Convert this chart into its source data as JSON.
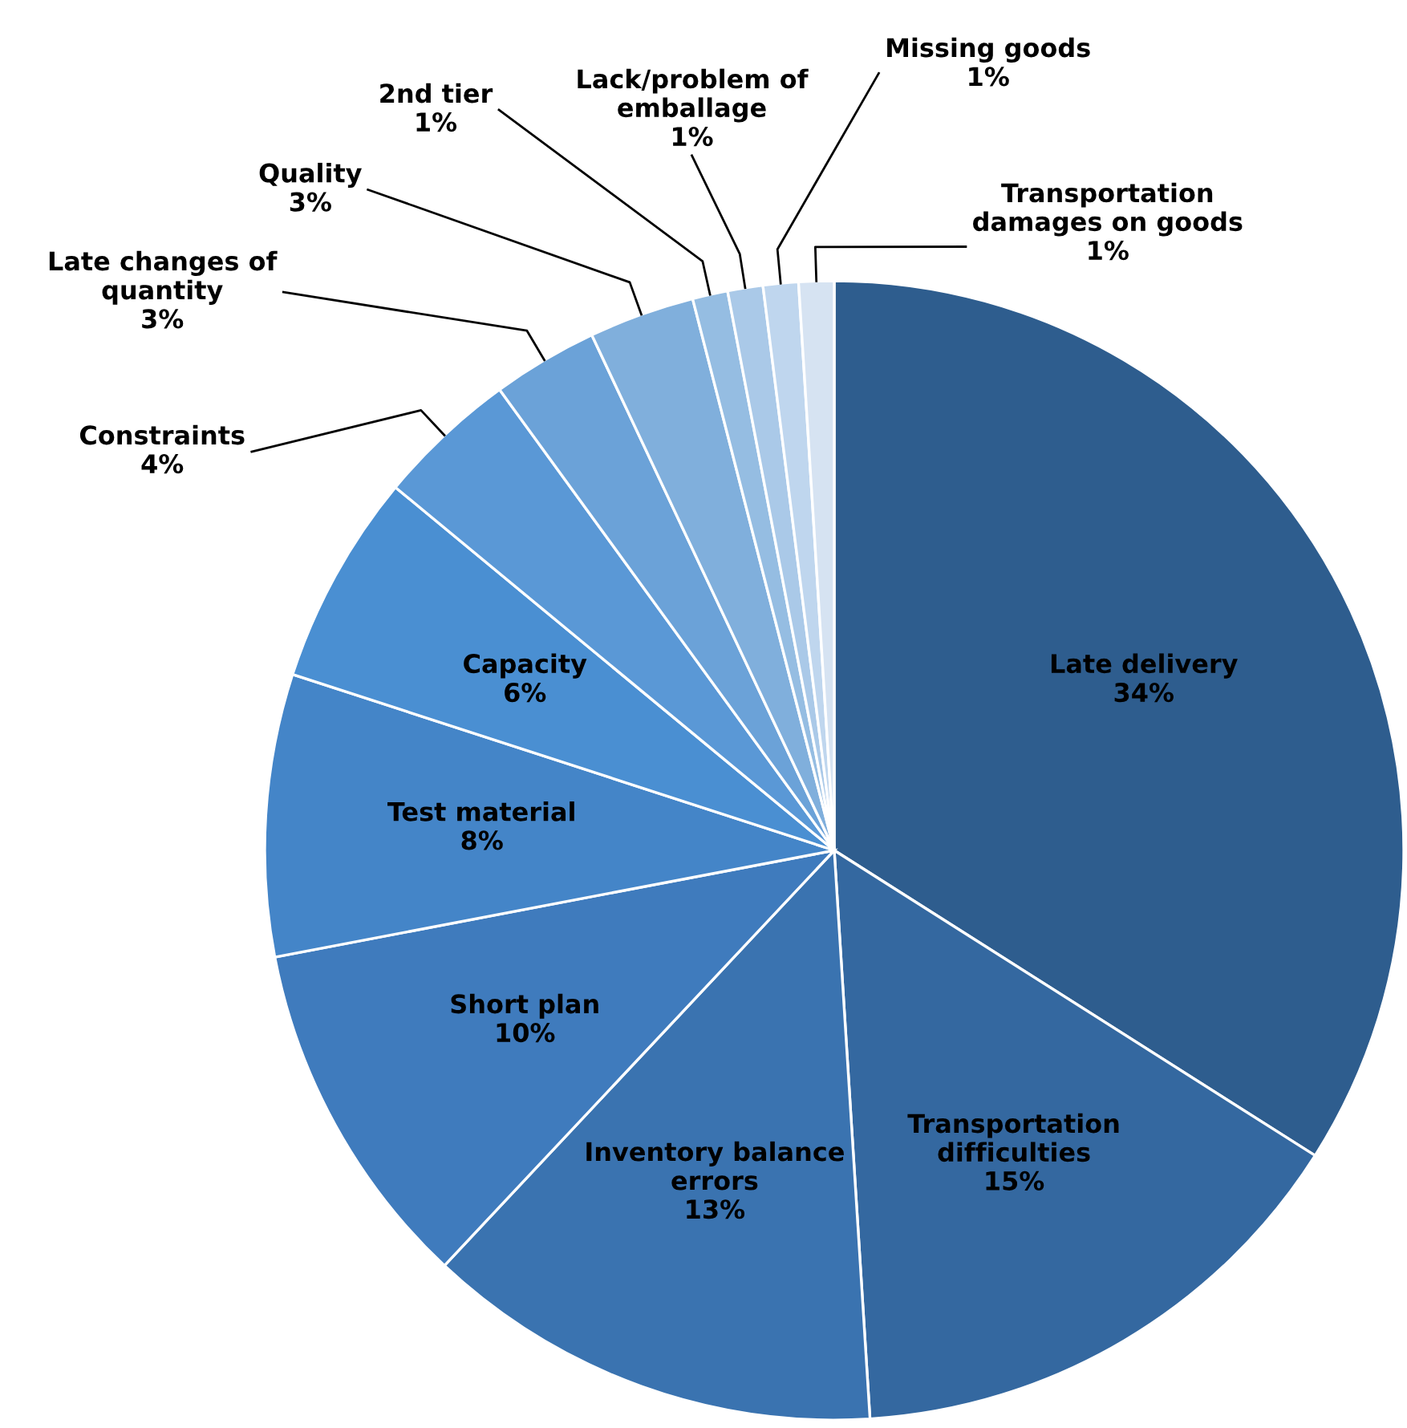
{
  "chart_data": {
    "type": "pie",
    "categories": [
      "Late delivery",
      "Transportation\ndifficulties",
      "Inventory balance\nerrors",
      "Short plan",
      "Test material",
      "Capacity",
      "Constraints",
      "Late changes of\nquantity",
      "Quality",
      "2nd tier",
      "Lack/problem of\nemballage",
      "Missing goods",
      "Transportation\ndamages on goods"
    ],
    "values": [
      34,
      15,
      13,
      10,
      8,
      6,
      4,
      3,
      3,
      1,
      1,
      1,
      1
    ],
    "colors": [
      "#2e5d8e",
      "#3468a0",
      "#3a73b0",
      "#3f7bbd",
      "#4485c8",
      "#4a8fd2",
      "#5a98d6",
      "#6ba2d8",
      "#80afdc",
      "#95bde2",
      "#aac9e8",
      "#bfd6ee",
      "#d6e3f2"
    ],
    "value_labels": [
      "34%",
      "15%",
      "13%",
      "10%",
      "8%",
      "6%",
      "4%",
      "3%",
      "3%",
      "1%",
      "1%",
      "1%",
      "1%"
    ],
    "legend": false
  }
}
